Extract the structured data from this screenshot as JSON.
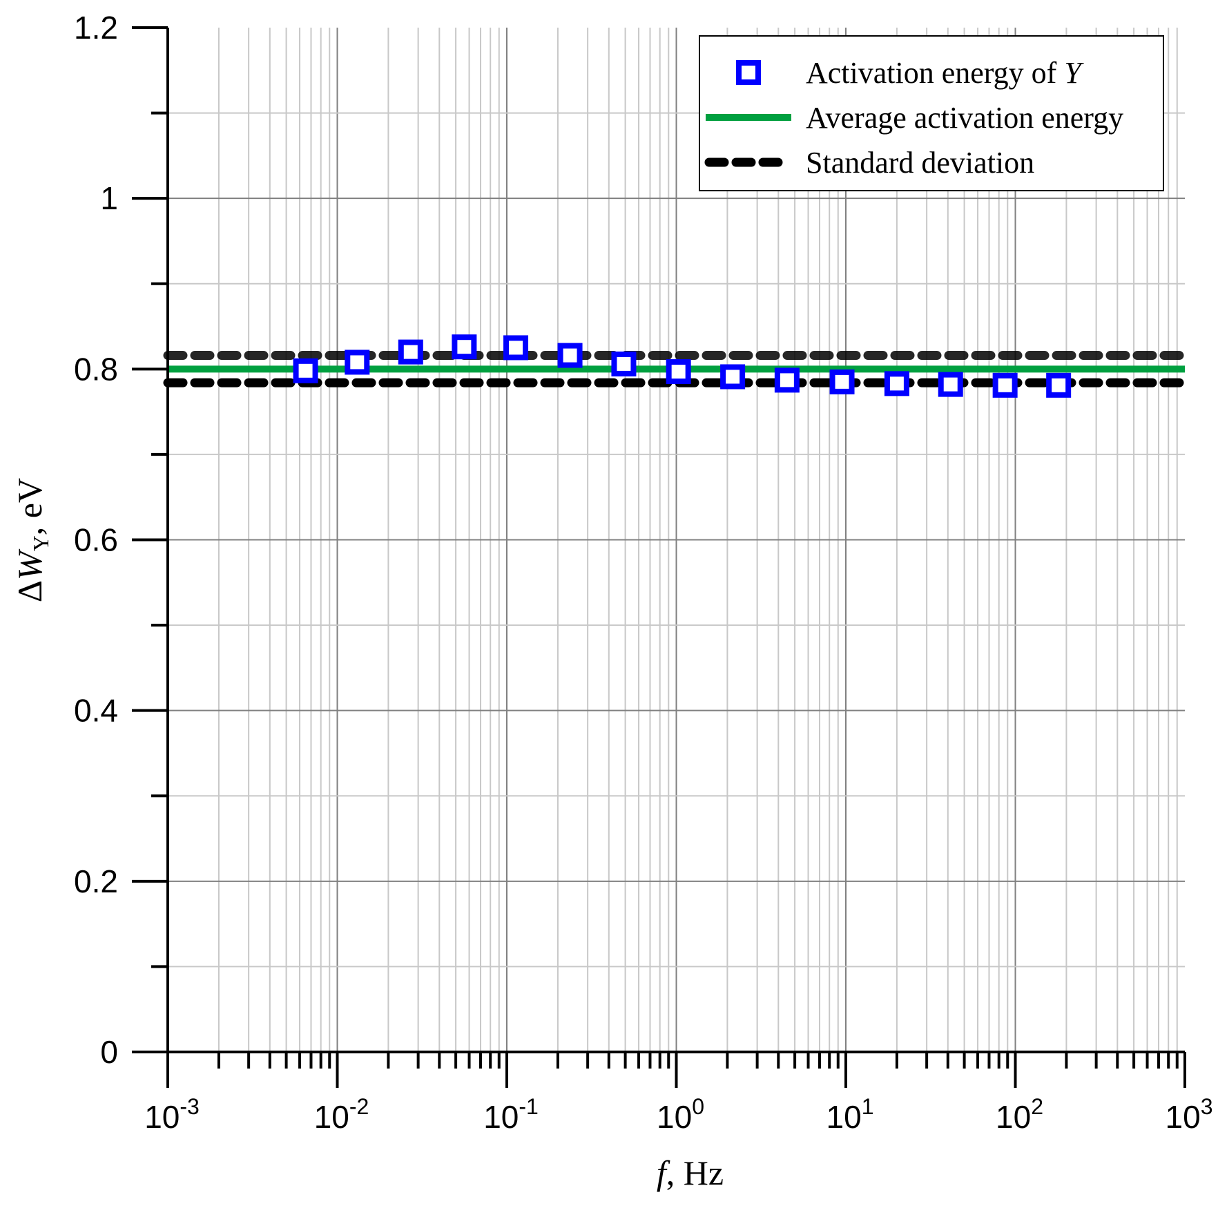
{
  "chart_data": {
    "type": "scatter",
    "xscale": "log",
    "xlim": [
      0.001,
      1000
    ],
    "ylim": [
      0,
      1.2
    ],
    "x_ticks": [
      {
        "base": "10",
        "exp": "-3"
      },
      {
        "base": "10",
        "exp": "-2"
      },
      {
        "base": "10",
        "exp": "-1"
      },
      {
        "base": "10",
        "exp": "0"
      },
      {
        "base": "10",
        "exp": "1"
      },
      {
        "base": "10",
        "exp": "2"
      },
      {
        "base": "10",
        "exp": "3"
      }
    ],
    "y_ticks": [
      "0",
      "0.2",
      "0.4",
      "0.6",
      "0.8",
      "1",
      "1.2"
    ],
    "xlabel": {
      "symbol": "f",
      "rest": ", Hz"
    },
    "ylabel": {
      "delta": "Δ",
      "symbol": "W",
      "sub": "Y",
      "rest": ", eV"
    },
    "grid": true,
    "legend_position": "top-right",
    "series": [
      {
        "name": "Activation energy of Y",
        "name_text": "Activation energy of ",
        "name_italic": "Y",
        "style": "open-square-markers",
        "color": "#0000ff",
        "x": [
          0.0065,
          0.0131,
          0.0271,
          0.0561,
          0.113,
          0.236,
          0.49,
          1.03,
          2.15,
          4.5,
          9.5,
          20,
          41.5,
          87,
          180
        ],
        "y": [
          0.798,
          0.808,
          0.82,
          0.826,
          0.825,
          0.816,
          0.806,
          0.797,
          0.791,
          0.787,
          0.785,
          0.783,
          0.782,
          0.781,
          0.781
        ]
      },
      {
        "name": "Average activation energy",
        "style": "solid-line",
        "color": "#00a040",
        "y": 0.8
      },
      {
        "name": "Standard deviation",
        "style": "dotted-line",
        "color": "#000000",
        "y": [
          0.816,
          0.784
        ]
      }
    ]
  }
}
